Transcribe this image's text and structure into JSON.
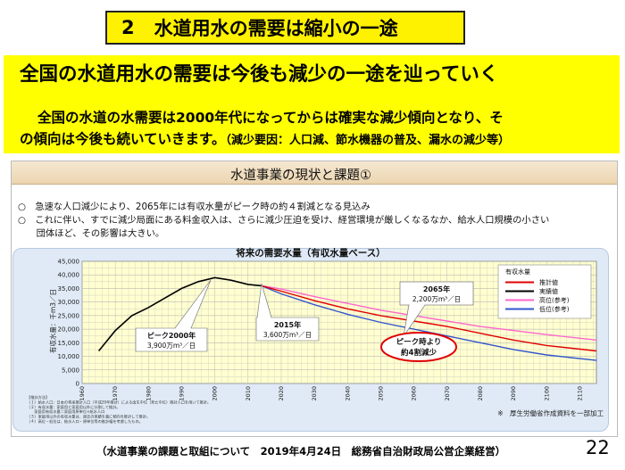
{
  "slide": {
    "title_number": "2",
    "title_text": "水道用水の需要は縮小の一途",
    "headline": "全国の水道用水の需要は今後も減少の一途を辿っていく",
    "desc_line1": "全国の水道の水需要は2000年代になってからは確実な減少傾向となり、そ",
    "desc_line2_main": "の傾向は今後も続いていきます。",
    "desc_line2_small": "（減少要因：人口減、節水機器の普及、漏水の減少等）",
    "footer": "（水道事業の課題と取組について　2019年4月24日　総務省自治財政局公営企業経営）",
    "page_number": "22"
  },
  "panel": {
    "title": "水道事業の現状と課題①",
    "bullets": [
      "○　急速な人口減少により、2065年には有収水量がピーク時の約４割減となる見込み",
      "○　これに伴い、すでに減少局面にある料金収入は、さらに減少圧迫を受け、経営環境が厳しくなるなか、給水人口規模の小さい",
      "　　団体ほど、その影響は大きい。"
    ]
  },
  "chart_data": {
    "type": "line",
    "title": "将来の需要水量（有収水量ベース）",
    "ylabel": "有収水量：千m3／日",
    "ylim": [
      0,
      45000
    ],
    "yticks": [
      0,
      5000,
      10000,
      15000,
      20000,
      25000,
      30000,
      35000,
      40000,
      45000
    ],
    "ytick_labels": [
      "0",
      "5,000",
      "10,000",
      "15,000",
      "20,000",
      "25,000",
      "30,000",
      "35,000",
      "40,000",
      "45,000"
    ],
    "xlim": [
      1960,
      2115
    ],
    "xticks": [
      1960,
      1970,
      1980,
      1990,
      2000,
      2010,
      2020,
      2030,
      2040,
      2050,
      2060,
      2070,
      2080,
      2090,
      2100,
      2110
    ],
    "legend": {
      "title": "有収水量",
      "placement": "top-right",
      "entries": [
        "推計値",
        "実績値",
        "高位(参考)",
        "低位(参考)"
      ]
    },
    "series": [
      {
        "name": "実績値",
        "color": "#000000",
        "x": [
          1965,
          1970,
          1975,
          1980,
          1985,
          1990,
          1995,
          2000,
          2005,
          2010,
          2014
        ],
        "y": [
          12000,
          19500,
          25000,
          28000,
          31500,
          35000,
          37500,
          39000,
          38000,
          36500,
          36000
        ]
      },
      {
        "name": "推計値",
        "color": "#e00000",
        "x": [
          2014,
          2020,
          2030,
          2040,
          2050,
          2060,
          2065,
          2070,
          2080,
          2090,
          2100,
          2115
        ],
        "y": [
          36000,
          34000,
          30500,
          27500,
          25000,
          23000,
          22000,
          21000,
          18500,
          16000,
          14000,
          12000
        ]
      },
      {
        "name": "高位(参考)",
        "color": "#ff66cc",
        "x": [
          2014,
          2020,
          2030,
          2040,
          2050,
          2060,
          2070,
          2080,
          2090,
          2100,
          2115
        ],
        "y": [
          36000,
          34800,
          32000,
          29500,
          27000,
          25000,
          23000,
          21000,
          19500,
          18000,
          16000
        ]
      },
      {
        "name": "低位(参考)",
        "color": "#3355cc",
        "x": [
          2014,
          2020,
          2030,
          2040,
          2050,
          2060,
          2070,
          2080,
          2090,
          2100,
          2115
        ],
        "y": [
          36000,
          33000,
          29000,
          25500,
          22500,
          20000,
          17500,
          15000,
          12500,
          10500,
          8500
        ]
      }
    ],
    "annotations": [
      {
        "id": "peak2000",
        "line1": "ピーク2000年",
        "line2": "3,900万m³／日"
      },
      {
        "id": "y2015",
        "line1": "2015年",
        "line2": "3,600万m³／日"
      },
      {
        "id": "y2065",
        "line1": "2065年",
        "line2": "2,200万m³／日"
      },
      {
        "id": "reduction",
        "line1": "ピーク時より",
        "line2": "約4割減少"
      }
    ],
    "source_note": "※　厚生労働省作成資料を一部加工",
    "notes": [
      "【推計方法】",
      "（１）給水人口：日本の将来推計人口（平成29年推計）による出生中位（死亡中位）推計人口を用いて推計。",
      "（２）有収水量：家庭用と家庭用以外に分割して推計。",
      "　　家庭用有収水量＝家庭用原単位×給水人口",
      "（３）家庭用以外の有収水量は、過去の実績を基に傾向を推計して推計。",
      "（４）高位・低位は、給水人口・原単位等の推計幅を考慮したもの。"
    ],
    "grid": true
  },
  "colors": {
    "title_bg": "#fff200",
    "band_bg": "#ffff00",
    "plot_bg": "#ffffd0",
    "reduction_border": "#e00000"
  }
}
